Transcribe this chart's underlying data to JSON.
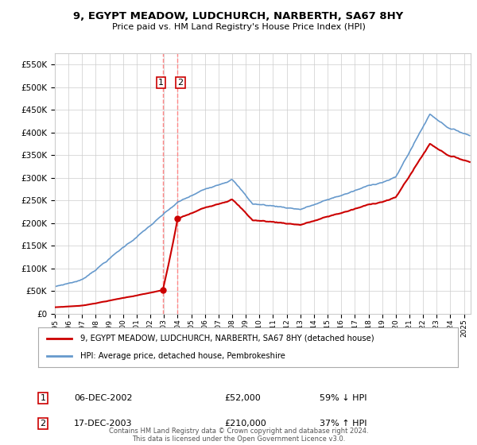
{
  "title": "9, EGYPT MEADOW, LUDCHURCH, NARBERTH, SA67 8HY",
  "subtitle": "Price paid vs. HM Land Registry's House Price Index (HPI)",
  "ylim": [
    0,
    575000
  ],
  "xlim_start": 1995.0,
  "xlim_end": 2025.5,
  "legend_line1": "9, EGYPT MEADOW, LUDCHURCH, NARBERTH, SA67 8HY (detached house)",
  "legend_line2": "HPI: Average price, detached house, Pembrokeshire",
  "transaction1_date": "06-DEC-2002",
  "transaction1_price": "£52,000",
  "transaction1_hpi": "59% ↓ HPI",
  "transaction1_year": 2002.92,
  "transaction1_value": 52000,
  "transaction2_date": "17-DEC-2003",
  "transaction2_price": "£210,000",
  "transaction2_hpi": "37% ↑ HPI",
  "transaction2_year": 2003.96,
  "transaction2_value": 210000,
  "footer": "Contains HM Land Registry data © Crown copyright and database right 2024.\nThis data is licensed under the Open Government Licence v3.0.",
  "red_color": "#cc0000",
  "blue_color": "#6699cc",
  "dashed_color": "#ff8888",
  "background_color": "#ffffff",
  "grid_color": "#cccccc"
}
